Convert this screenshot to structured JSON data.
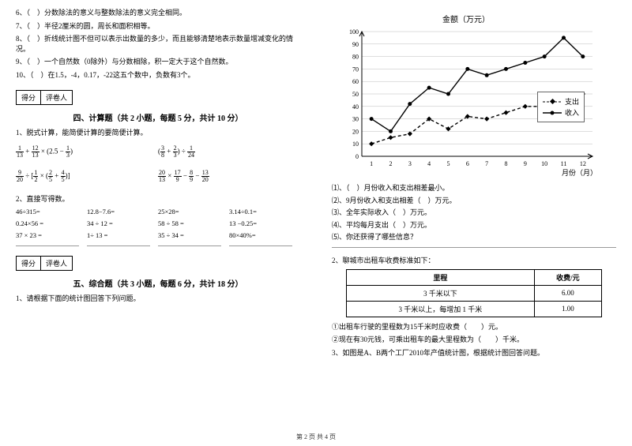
{
  "left": {
    "q6": "6、（　）分数除法的意义与整数除法的意义完全相同。",
    "q7": "7、（　）半径2厘米的圆，周长和面积相等。",
    "q8": "8、（　）折线统计图不但可以表示出数量的多少，而且能够清楚地表示数量增减变化的情况。",
    "q9": "9、（　）一个自然数（0除外）与分数相除，积一定大于这个自然数。",
    "q10": "10、（　）在1.5，-4，0.17，-22这五个数中，负数有3个。",
    "scorebox_a": "得分",
    "scorebox_b": "评卷人",
    "sec4_title": "四、计算题（共 2 小题，每题 5 分，共计 10 分）",
    "calc1_label": "1、脱式计算，能简便计算的要简便计算。",
    "calc2_label": "2、直接写得数。",
    "fill": {
      "r1c1": "46÷315=",
      "r1c2": "12.8−7.6=",
      "r1c3": "25×28=",
      "r1c4": "3.14÷0.1=",
      "r2c1": "0.24×56 =",
      "r2c2": "34 ÷ 12 =",
      "r2c3": "58 ÷ 58 =",
      "r2c4": "13 −0.25=",
      "r3c1": "37 × 23 =",
      "r3c2": "1÷ 13 =",
      "r3c3": "35 ÷ 34 =",
      "r3c4": "80×40%="
    },
    "sec5_title": "五、综合题（共 3 小题，每题 6 分，共计 18 分）",
    "综1": "1、请根据下面的统计图回答下列问题。"
  },
  "right": {
    "chart": {
      "title": "金额（万元）",
      "xlabel": "月份（月）",
      "ylim": [
        0,
        100
      ],
      "ytick_step": 10,
      "xcats": [
        "1",
        "2",
        "3",
        "4",
        "5",
        "6",
        "7",
        "8",
        "9",
        "10",
        "11",
        "12"
      ],
      "series": {
        "income": {
          "label": "收入",
          "color": "#000000",
          "style": "solid",
          "marker": "circle",
          "values": [
            30,
            20,
            42,
            55,
            50,
            70,
            65,
            70,
            75,
            80,
            95,
            80
          ]
        },
        "expense": {
          "label": "支出",
          "color": "#000000",
          "style": "dashed",
          "marker": "diamond",
          "values": [
            10,
            15,
            18,
            30,
            22,
            32,
            30,
            35,
            40,
            40,
            45,
            50
          ]
        }
      },
      "grid_color": "#bbbbbb",
      "background_color": "#ffffff"
    },
    "qs": {
      "q1": "⑴、（　）月份收入和支出相差最小。",
      "q2": "⑵、9月份收入和支出相差（　）万元。",
      "q3": "⑶、全年实际收入（　）万元。",
      "q4": "⑷、平均每月支出（　）万元。",
      "q5": "⑸、你还获得了哪些信息？"
    },
    "taxi_intro": "2、聊城市出租车收费标准如下：",
    "taxi_table": {
      "columns": [
        "里程",
        "收费/元"
      ],
      "rows": [
        [
          "3 千米以下",
          "6.00"
        ],
        [
          "3 千米以上，每增加 1 千米",
          "1.00"
        ]
      ]
    },
    "taxi_q1": "①出租车行驶的里程数为15千米时应收费（　　）元。",
    "taxi_q2": "②现在有30元钱，可乘出租车的最大里程数为（　　）千米。",
    "factory": "3、如图是A、B两个工厂2010年产值统计图，根据统计图回答问题。"
  },
  "footer": "第 2 页 共 4 页"
}
